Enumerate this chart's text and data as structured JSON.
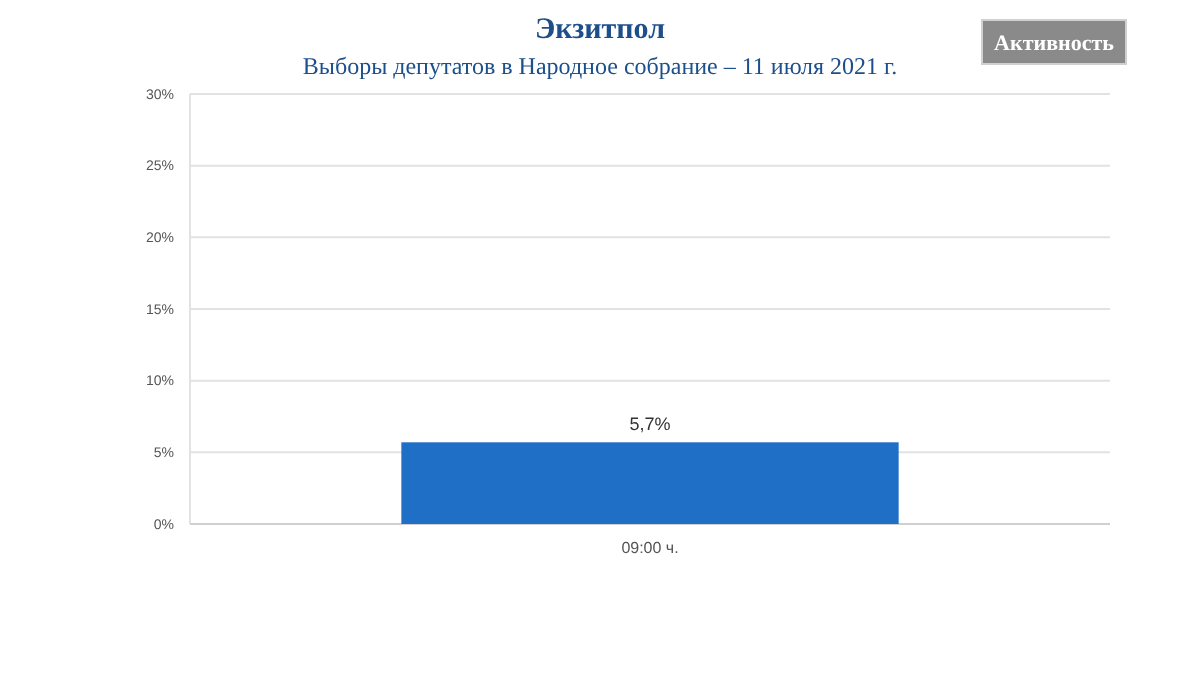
{
  "chart_data": {
    "type": "bar",
    "title": "Экзитпол",
    "subtitle": "Выборы депутатов в Народное собрание – 11 июля 2021 г.",
    "categories": [
      "09:00 ч."
    ],
    "values": [
      5.7
    ],
    "value_labels": [
      "5,7%"
    ],
    "color": "#1f6fc6",
    "ylim": [
      0,
      30
    ],
    "yticks": [
      {
        "value": 0,
        "label": "0%"
      },
      {
        "value": 5,
        "label": "5%"
      },
      {
        "value": 10,
        "label": "10%"
      },
      {
        "value": 15,
        "label": "15%"
      },
      {
        "value": 20,
        "label": "20%"
      },
      {
        "value": 25,
        "label": "25%"
      },
      {
        "value": 30,
        "label": "30%"
      }
    ],
    "grid": "y",
    "annotations": [
      "Активность"
    ]
  }
}
